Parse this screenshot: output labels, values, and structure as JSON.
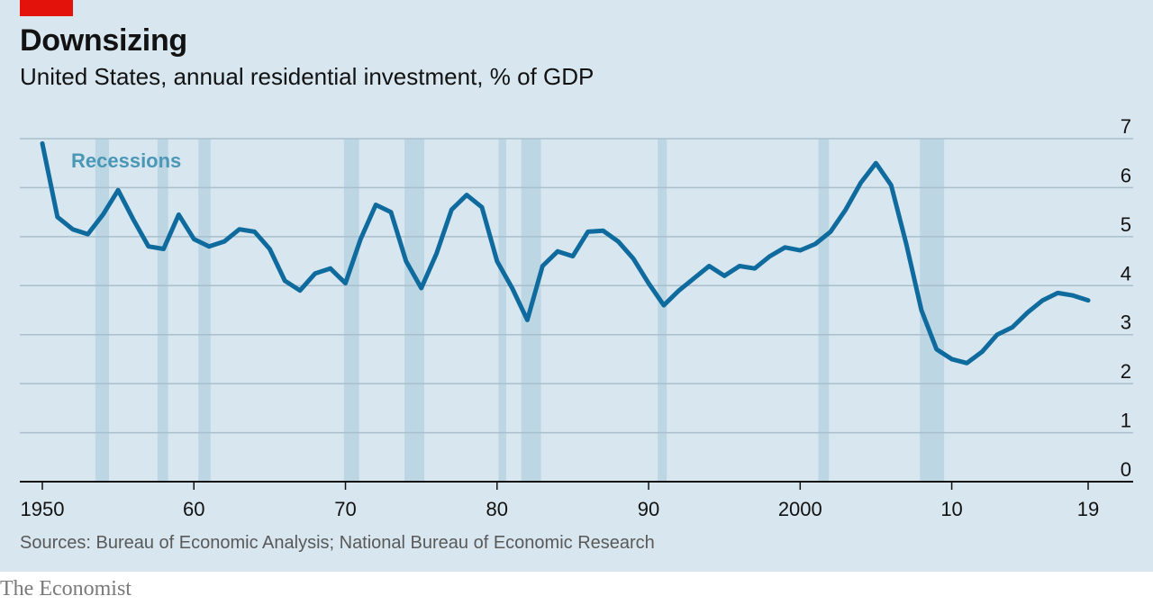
{
  "header": {
    "title": "Downsizing",
    "subtitle": "United States, annual residential investment, % of GDP"
  },
  "footer": {
    "source": "Sources: Bureau of Economic Analysis; National Bureau of Economic Research",
    "brand": "The Economist"
  },
  "colors": {
    "background": "#d7e6ef",
    "line": "#0f6b9e",
    "recession": "#bcd6e4",
    "grid": "#a9bfcc",
    "accent_red": "#e3120b",
    "annotation": "#4a97b6"
  },
  "chart_data": {
    "type": "line",
    "title": "Downsizing",
    "subtitle": "United States, annual residential investment, % of GDP",
    "xlabel": "",
    "ylabel": "",
    "xlim": [
      1950,
      2019
    ],
    "ylim": [
      0,
      7
    ],
    "x_ticks": [
      1950,
      1960,
      1970,
      1980,
      1990,
      2000,
      2010,
      2019
    ],
    "x_tick_labels": [
      "1950",
      "60",
      "70",
      "80",
      "90",
      "2000",
      "10",
      "19"
    ],
    "y_ticks": [
      0,
      1,
      2,
      3,
      4,
      5,
      6,
      7
    ],
    "y_tick_labels": [
      "0",
      "1",
      "2",
      "3",
      "4",
      "5",
      "6",
      "7"
    ],
    "y_axis_side": "right",
    "grid": true,
    "annotation": "Recessions",
    "recessions": [
      [
        1953.5,
        1954.4
      ],
      [
        1957.6,
        1958.3
      ],
      [
        1960.3,
        1961.1
      ],
      [
        1969.9,
        1970.9
      ],
      [
        1973.9,
        1975.2
      ],
      [
        1980.1,
        1980.6
      ],
      [
        1981.6,
        1982.9
      ],
      [
        1990.6,
        1991.2
      ],
      [
        2001.2,
        2001.9
      ],
      [
        2007.9,
        2009.5
      ]
    ],
    "series": [
      {
        "x": [
          1950,
          1951,
          1952,
          1953,
          1954,
          1955,
          1956,
          1957,
          1958,
          1959,
          1960,
          1961,
          1962,
          1963,
          1964,
          1965,
          1966,
          1967,
          1968,
          1969,
          1970,
          1971,
          1972,
          1973,
          1974,
          1975,
          1976,
          1977,
          1978,
          1979,
          1980,
          1981,
          1982,
          1983,
          1984,
          1985,
          1986,
          1987,
          1988,
          1989,
          1990,
          1991,
          1992,
          1993,
          1994,
          1995,
          1996,
          1997,
          1998,
          1999,
          2000,
          2001,
          2002,
          2003,
          2004,
          2005,
          2006,
          2007,
          2008,
          2009,
          2010,
          2011,
          2012,
          2013,
          2014,
          2015,
          2016,
          2017,
          2018,
          2019
        ],
        "values": [
          6.9,
          5.4,
          5.15,
          5.05,
          5.45,
          5.95,
          5.35,
          4.8,
          4.75,
          5.45,
          4.95,
          4.8,
          4.9,
          5.15,
          5.1,
          4.75,
          4.1,
          3.9,
          4.25,
          4.35,
          4.05,
          4.95,
          5.65,
          5.5,
          4.5,
          3.95,
          4.65,
          5.55,
          5.85,
          5.6,
          4.5,
          3.95,
          3.3,
          4.4,
          4.7,
          4.6,
          5.1,
          5.12,
          4.9,
          4.55,
          4.05,
          3.6,
          3.9,
          4.15,
          4.4,
          4.2,
          4.4,
          4.35,
          4.6,
          4.78,
          4.72,
          4.85,
          5.1,
          5.55,
          6.1,
          6.5,
          6.05,
          4.85,
          3.5,
          2.7,
          2.5,
          2.42,
          2.65,
          3.0,
          3.15,
          3.45,
          3.7,
          3.85,
          3.8,
          3.7
        ]
      }
    ]
  }
}
